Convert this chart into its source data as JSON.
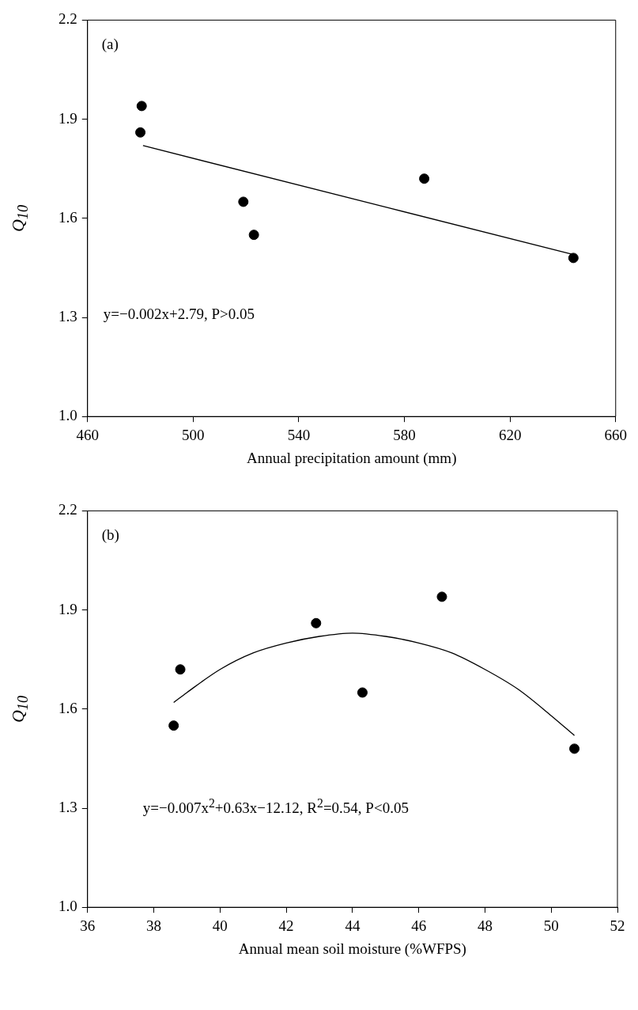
{
  "chart_data": [
    {
      "type": "scatter",
      "xlabel": "Annual precipitation amount (mm)",
      "ylabel": "Q$_{10}$",
      "annotations": [
        "(a)",
        "y=−0.002x+2.79, P>0.05"
      ],
      "xlim": [
        460,
        660
      ],
      "xticks": [
        460,
        500,
        540,
        580,
        620,
        660
      ],
      "ylim": [
        1.0,
        2.2
      ],
      "yticks": [
        {
          "value": 1.0,
          "label": "1.0"
        },
        1.3,
        1.6,
        1.9,
        2.2
      ],
      "series": [
        {
          "marker": "circle",
          "color": "#000000",
          "x": [
            480.5,
            480,
            519,
            523,
            587.5,
            644
          ],
          "values": [
            1.94,
            1.86,
            1.65,
            1.55,
            1.72,
            1.48
          ]
        },
        {
          "type": "line",
          "marker": "none",
          "color": "#000000",
          "x": [
            481,
            644
          ],
          "values": [
            1.82,
            1.49
          ]
        }
      ]
    },
    {
      "type": "scatter",
      "xlabel": "Annual mean soil moisture (%WFPS)",
      "ylabel": "Q$_{10}$",
      "annotations": [
        "(b)",
        "y=−0.007x$^{2}$+0.63x−12.12, R$^{2}$=0.54, P<0.05"
      ],
      "xlim": [
        36,
        52
      ],
      "xticks": [
        36,
        38,
        40,
        42,
        44,
        46,
        48,
        50,
        52
      ],
      "ylim": [
        1.0,
        2.2
      ],
      "yticks": [
        {
          "value": 1.0,
          "label": "1.0"
        },
        1.3,
        1.6,
        1.9,
        2.2
      ],
      "series": [
        {
          "marker": "circle",
          "color": "#000000",
          "x": [
            38.6,
            38.8,
            42.9,
            44.3,
            46.7,
            50.7
          ],
          "values": [
            1.55,
            1.72,
            1.86,
            1.65,
            1.94,
            1.48
          ]
        },
        {
          "type": "line",
          "marker": "none",
          "color": "#000000",
          "x": [
            38.6,
            39,
            40,
            41,
            42,
            43,
            44,
            45,
            46,
            47,
            48,
            49,
            50,
            50.7
          ],
          "values": [
            1.62,
            1.65,
            1.72,
            1.77,
            1.8,
            1.82,
            1.83,
            1.82,
            1.8,
            1.77,
            1.72,
            1.66,
            1.58,
            1.52
          ]
        }
      ]
    }
  ]
}
